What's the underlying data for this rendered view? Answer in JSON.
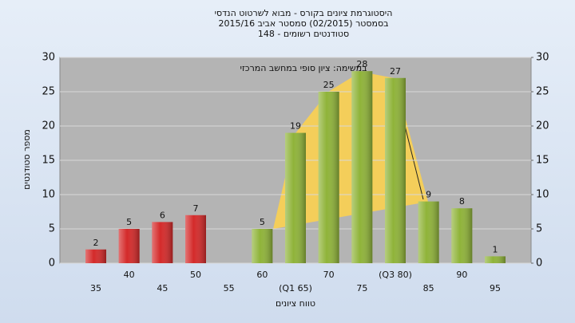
{
  "chart_data": {
    "type": "bar",
    "title": "היסטוגרמת ציונים בקורס - מבוא לשרטוט הנדסי",
    "subtitle": "בסמסטר  (02/2015)  סמסטר אביב 2015/16",
    "subtitle2": "סטודנטים רשומים - 148",
    "annotation": "במשימה: ציון סופי במחשב המרכזי",
    "ylabel": "מספר סטודנטים",
    "xlabel": "טווח ציונים",
    "categories": [
      "35",
      "40",
      "45",
      "50",
      "55",
      "60",
      "(Q1 65)",
      "70",
      "75",
      "(Q3 80)",
      "85",
      "90",
      "95"
    ],
    "values": [
      2,
      5,
      6,
      7,
      null,
      5,
      19,
      25,
      28,
      27,
      9,
      8,
      1
    ],
    "colors": [
      "#d42a2a",
      "#d42a2a",
      "#d42a2a",
      "#d42a2a",
      "#d42a2a",
      "#8fb339",
      "#8fb339",
      "#8fb339",
      "#8fb339",
      "#8fb339",
      "#8fb339",
      "#8fb339",
      "#8fb339"
    ],
    "ylim": [
      0,
      30
    ],
    "yticks": [
      0,
      5,
      10,
      15,
      20,
      25,
      30
    ],
    "y2lim": [
      0,
      30
    ],
    "y2ticks": [
      0,
      5,
      10,
      15,
      20,
      25,
      30
    ],
    "grid": true
  }
}
